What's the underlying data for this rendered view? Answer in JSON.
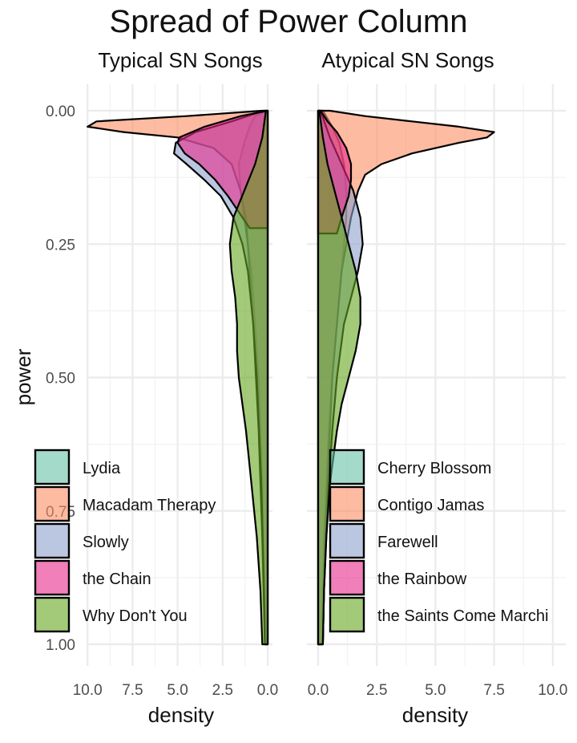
{
  "chart_data": {
    "title": "Spread of Power Column",
    "type": "area",
    "orientation": "horizontal half-violin densities",
    "y_axis": {
      "label": "power",
      "range": [
        0,
        1
      ],
      "reversed": true,
      "ticks": [
        0.0,
        0.25,
        0.5,
        0.75,
        1.0
      ],
      "tick_labels": [
        "0.00",
        "0.25",
        "0.50",
        "0.75",
        "1.00"
      ]
    },
    "x_axis": {
      "label": "density"
    },
    "colors": [
      "#66c2a5",
      "#fc8d62",
      "#8da0cb",
      "#e7298a",
      "#66a61e"
    ],
    "panels": [
      {
        "facet_label": "Typical SN Songs",
        "direction": "left",
        "xlim": [
          0,
          10
        ],
        "ticks": [
          10.0,
          7.5,
          5.0,
          2.5,
          0.0
        ],
        "tick_labels": [
          "10.0",
          "7.5",
          "5.0",
          "2.5",
          "0.0"
        ],
        "series": [
          {
            "name": "Lydia",
            "y": [
              0,
              0.01,
              0.03,
              0.06,
              0.1,
              0.15,
              0.2,
              0.25,
              0.3,
              0.4,
              0.5,
              0.6,
              0.7,
              0.8,
              0.9,
              1.0
            ],
            "density": [
              0.0,
              0.7,
              1.0,
              1.3,
              1.6,
              1.5,
              1.3,
              1.1,
              0.9,
              0.7,
              0.5,
              0.4,
              0.3,
              0.25,
              0.2,
              0.15
            ]
          },
          {
            "name": "Macadam Therapy",
            "y": [
              0,
              0.01,
              0.02,
              0.03,
              0.04,
              0.05,
              0.07,
              0.1,
              0.15,
              0.2,
              0.3,
              0.4,
              0.6,
              0.8,
              1.0
            ],
            "density": [
              0.3,
              4.5,
              9.5,
              10.0,
              8.0,
              5.0,
              3.0,
              2.0,
              1.5,
              1.2,
              1.0,
              0.8,
              0.5,
              0.3,
              0.15
            ]
          },
          {
            "name": "Slowly",
            "y": [
              0,
              0.02,
              0.04,
              0.06,
              0.08,
              0.1,
              0.13,
              0.16,
              0.2,
              0.25,
              0.3,
              0.4,
              0.5,
              0.7,
              0.9,
              1.0
            ],
            "density": [
              0.2,
              2.0,
              4.0,
              5.1,
              5.2,
              4.5,
              3.5,
              2.6,
              1.9,
              1.4,
              1.1,
              0.8,
              0.6,
              0.35,
              0.2,
              0.15
            ]
          },
          {
            "name": "the Chain",
            "y": [
              0,
              0.01,
              0.03,
              0.05,
              0.06,
              0.08,
              0.1,
              0.13,
              0.16,
              0.2,
              0.22
            ],
            "density": [
              0.0,
              1.5,
              3.5,
              4.9,
              5.0,
              4.6,
              3.8,
              2.9,
              2.2,
              1.4,
              1.0
            ]
          },
          {
            "name": "Why Don't You",
            "y": [
              0,
              0.05,
              0.1,
              0.15,
              0.2,
              0.25,
              0.3,
              0.35,
              0.4,
              0.45,
              0.5,
              0.55,
              0.6,
              0.7,
              0.8,
              0.9,
              1.0
            ],
            "density": [
              0.1,
              0.3,
              0.7,
              1.3,
              1.9,
              2.1,
              2.0,
              1.8,
              1.7,
              1.7,
              1.6,
              1.4,
              1.2,
              0.9,
              0.6,
              0.4,
              0.3
            ]
          }
        ]
      },
      {
        "facet_label": "Atypical SN Songs",
        "direction": "right",
        "xlim": [
          0,
          10
        ],
        "ticks": [
          0.0,
          2.5,
          5.0,
          7.5,
          10.0
        ],
        "tick_labels": [
          "0.0",
          "2.5",
          "5.0",
          "7.5",
          "10.0"
        ],
        "series": [
          {
            "name": "Cherry Blossom",
            "y": [
              0,
              0.03,
              0.06,
              0.1,
              0.15,
              0.2,
              0.3,
              0.4,
              0.5,
              0.6,
              0.7,
              0.8,
              0.9,
              1.0
            ],
            "density": [
              0.2,
              0.6,
              0.9,
              1.1,
              1.2,
              1.2,
              1.0,
              0.8,
              0.6,
              0.45,
              0.35,
              0.25,
              0.2,
              0.15
            ]
          },
          {
            "name": "Contigo Jamas",
            "y": [
              0,
              0.01,
              0.02,
              0.03,
              0.04,
              0.05,
              0.06,
              0.08,
              0.1,
              0.12,
              0.15,
              0.2,
              0.3,
              0.4,
              0.5,
              0.6,
              0.7,
              0.8,
              0.9,
              1.0
            ],
            "density": [
              0.5,
              2.0,
              4.0,
              6.0,
              7.5,
              7.2,
              6.0,
              4.0,
              2.7,
              2.0,
              1.7,
              1.4,
              1.0,
              0.8,
              0.6,
              0.5,
              0.4,
              0.3,
              0.25,
              0.2
            ]
          },
          {
            "name": "Farewell",
            "y": [
              0,
              0.05,
              0.1,
              0.15,
              0.2,
              0.25,
              0.3,
              0.35,
              0.4,
              0.5,
              0.6,
              0.7,
              0.8,
              0.9,
              1.0
            ],
            "density": [
              0.1,
              0.5,
              1.0,
              1.5,
              1.8,
              1.9,
              1.7,
              1.4,
              1.1,
              0.8,
              0.6,
              0.45,
              0.35,
              0.25,
              0.2
            ]
          },
          {
            "name": "the Rainbow",
            "y": [
              0,
              0.02,
              0.04,
              0.07,
              0.1,
              0.13,
              0.16,
              0.2,
              0.23
            ],
            "density": [
              0.1,
              0.4,
              0.8,
              1.2,
              1.4,
              1.4,
              1.3,
              1.0,
              0.8
            ]
          },
          {
            "name": "the Saints Come Marchi",
            "y": [
              0,
              0.05,
              0.1,
              0.15,
              0.2,
              0.25,
              0.3,
              0.35,
              0.4,
              0.45,
              0.5,
              0.55,
              0.6,
              0.7,
              0.8,
              0.9,
              1.0
            ],
            "density": [
              0.05,
              0.2,
              0.4,
              0.7,
              1.0,
              1.3,
              1.6,
              1.8,
              1.8,
              1.6,
              1.3,
              1.0,
              0.8,
              0.5,
              0.35,
              0.25,
              0.2
            ]
          }
        ]
      }
    ]
  }
}
